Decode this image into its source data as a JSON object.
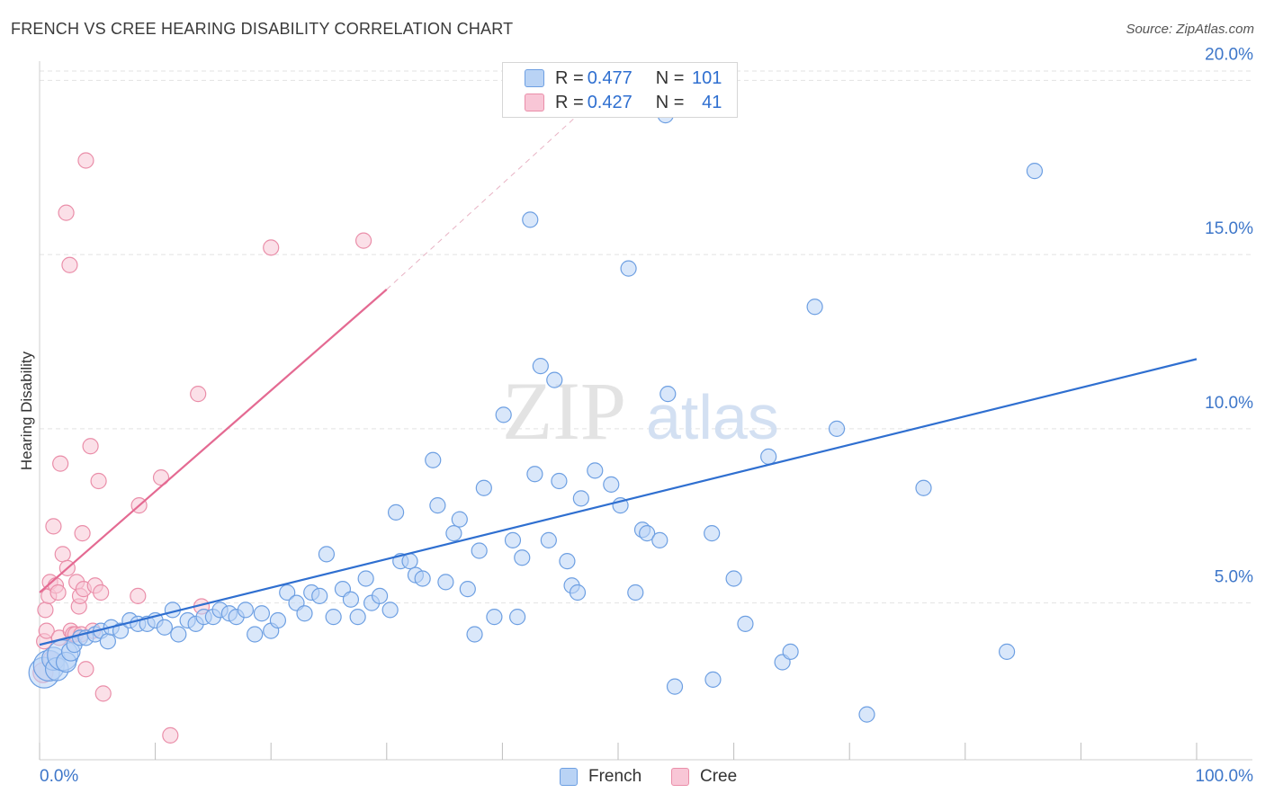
{
  "title": "FRENCH VS CREE HEARING DISABILITY CORRELATION CHART",
  "source": "Source: ZipAtlas.com",
  "legend": {
    "rows": [
      {
        "r_label": "R = ",
        "r_value": "0.477",
        "n_label": "N = ",
        "n_value": "101"
      },
      {
        "r_label": "R = ",
        "r_value": "0.427",
        "n_label": "N = ",
        "n_value": "41"
      }
    ],
    "bottom": [
      "French",
      "Cree"
    ]
  },
  "colors": {
    "french_fill": "#b9d3f5",
    "french_stroke": "#6d9fe2",
    "french_line": "#2f6fd0",
    "cree_fill": "#f8c6d6",
    "cree_stroke": "#ea8ea9",
    "cree_line": "#e46a92",
    "tick_label": "#3d76c9",
    "grid": "#e2e2e2"
  },
  "watermark": {
    "zip": "ZIP",
    "atlas": "atlas"
  },
  "chart_data": {
    "type": "scatter",
    "title": "FRENCH VS CREE HEARING DISABILITY CORRELATION CHART",
    "xlabel": "",
    "ylabel": "Hearing Disability",
    "xlim": [
      0,
      100
    ],
    "ylim": [
      0.5,
      20.5
    ],
    "x_tick_labels": [
      "0.0%",
      "100.0%"
    ],
    "y_ticks": [
      5,
      10,
      15,
      20
    ],
    "y_tick_labels": [
      "5.0%",
      "10.0%",
      "15.0%",
      "20.0%"
    ],
    "legend_position": "top-center",
    "series": [
      {
        "name": "French",
        "R": 0.477,
        "N": 101,
        "trendline": {
          "x": [
            0,
            100
          ],
          "y": [
            3.8,
            12.0
          ]
        },
        "points": [
          [
            0.4,
            3.0,
            2.0
          ],
          [
            0.8,
            3.2,
            2.0
          ],
          [
            1.2,
            3.4,
            1.5
          ],
          [
            1.5,
            3.1,
            1.5
          ],
          [
            2.0,
            3.5,
            2.0
          ],
          [
            2.3,
            3.3,
            1.3
          ],
          [
            2.7,
            3.6,
            1.2
          ],
          [
            3.0,
            3.8,
            1.0
          ],
          [
            3.5,
            4.0,
            1.0
          ],
          [
            4.0,
            4.0,
            1.0
          ],
          [
            4.8,
            4.1,
            1.0
          ],
          [
            5.3,
            4.2,
            1.0
          ],
          [
            5.9,
            3.9,
            1.0
          ],
          [
            6.2,
            4.3,
            1.0
          ],
          [
            7.0,
            4.2,
            1.0
          ],
          [
            7.8,
            4.5,
            1.0
          ],
          [
            8.5,
            4.4,
            1.0
          ],
          [
            9.3,
            4.4,
            1.0
          ],
          [
            10.0,
            4.5,
            1.0
          ],
          [
            10.8,
            4.3,
            1.0
          ],
          [
            11.5,
            4.8,
            1.0
          ],
          [
            12.0,
            4.1,
            1.0
          ],
          [
            12.8,
            4.5,
            1.0
          ],
          [
            13.5,
            4.4,
            1.0
          ],
          [
            14.2,
            4.6,
            1.0
          ],
          [
            15.0,
            4.6,
            1.0
          ],
          [
            15.6,
            4.8,
            1.0
          ],
          [
            16.4,
            4.7,
            1.0
          ],
          [
            17.0,
            4.6,
            1.0
          ],
          [
            17.8,
            4.8,
            1.0
          ],
          [
            18.6,
            4.1,
            1.0
          ],
          [
            19.2,
            4.7,
            1.0
          ],
          [
            20.0,
            4.2,
            1.0
          ],
          [
            20.6,
            4.5,
            1.0
          ],
          [
            21.4,
            5.3,
            1.0
          ],
          [
            22.2,
            5.0,
            1.0
          ],
          [
            22.9,
            4.7,
            1.0
          ],
          [
            23.5,
            5.3,
            1.0
          ],
          [
            24.2,
            5.2,
            1.0
          ],
          [
            24.8,
            6.4,
            1.0
          ],
          [
            25.4,
            4.6,
            1.0
          ],
          [
            26.2,
            5.4,
            1.0
          ],
          [
            26.9,
            5.1,
            1.0
          ],
          [
            27.5,
            4.6,
            1.0
          ],
          [
            28.2,
            5.7,
            1.0
          ],
          [
            28.7,
            5.0,
            1.0
          ],
          [
            29.4,
            5.2,
            1.0
          ],
          [
            30.3,
            4.8,
            1.0
          ],
          [
            30.8,
            7.6,
            1.0
          ],
          [
            31.2,
            6.2,
            1.0
          ],
          [
            32.0,
            6.2,
            1.0
          ],
          [
            32.5,
            5.8,
            1.0
          ],
          [
            33.1,
            5.7,
            1.0
          ],
          [
            34.0,
            9.1,
            1.0
          ],
          [
            34.4,
            7.8,
            1.0
          ],
          [
            35.1,
            5.6,
            1.0
          ],
          [
            35.8,
            7.0,
            1.0
          ],
          [
            36.3,
            7.4,
            1.0
          ],
          [
            37.0,
            5.4,
            1.0
          ],
          [
            37.6,
            4.1,
            1.0
          ],
          [
            38.0,
            6.5,
            1.0
          ],
          [
            38.4,
            8.3,
            1.0
          ],
          [
            39.3,
            4.6,
            1.0
          ],
          [
            40.1,
            10.4,
            1.0
          ],
          [
            40.9,
            6.8,
            1.0
          ],
          [
            41.3,
            4.6,
            1.0
          ],
          [
            41.7,
            6.3,
            1.0
          ],
          [
            42.4,
            16.0,
            1.0
          ],
          [
            42.8,
            8.7,
            1.0
          ],
          [
            43.3,
            11.8,
            1.0
          ],
          [
            44.0,
            6.8,
            1.0
          ],
          [
            44.5,
            11.4,
            1.0
          ],
          [
            44.9,
            8.5,
            1.0
          ],
          [
            45.6,
            6.2,
            1.0
          ],
          [
            46.0,
            5.5,
            1.0
          ],
          [
            46.5,
            5.3,
            1.0
          ],
          [
            46.8,
            8.0,
            1.0
          ],
          [
            48.0,
            8.8,
            1.0
          ],
          [
            49.4,
            8.4,
            1.0
          ],
          [
            50.2,
            7.8,
            1.0
          ],
          [
            50.9,
            14.6,
            1.0
          ],
          [
            51.5,
            5.3,
            1.0
          ],
          [
            52.1,
            7.1,
            1.0
          ],
          [
            52.5,
            7.0,
            1.0
          ],
          [
            53.6,
            6.8,
            1.0
          ],
          [
            54.3,
            11.0,
            1.0
          ],
          [
            54.1,
            19.0,
            1.0
          ],
          [
            54.9,
            2.6,
            1.0
          ],
          [
            58.1,
            7.0,
            1.0
          ],
          [
            58.2,
            2.8,
            1.0
          ],
          [
            60.0,
            5.7,
            1.0
          ],
          [
            61.0,
            4.4,
            1.0
          ],
          [
            63.0,
            9.2,
            1.0
          ],
          [
            64.2,
            3.3,
            1.0
          ],
          [
            64.9,
            3.6,
            1.0
          ],
          [
            67.0,
            13.5,
            1.0
          ],
          [
            68.9,
            10.0,
            1.0
          ],
          [
            71.5,
            1.8,
            1.0
          ],
          [
            76.4,
            8.3,
            1.0
          ],
          [
            83.6,
            3.6,
            1.0
          ],
          [
            86.0,
            17.4,
            1.0
          ]
        ]
      },
      {
        "name": "Cree",
        "R": 0.427,
        "N": 41,
        "trendline": {
          "x": [
            0,
            30
          ],
          "y": [
            5.3,
            14.0
          ]
        },
        "trendline_extension": {
          "x": [
            30,
            46.5
          ],
          "y": [
            14.0,
            19.0
          ]
        },
        "points": [
          [
            0.3,
            3.0,
            1.3
          ],
          [
            0.4,
            3.9,
            1.0
          ],
          [
            0.5,
            4.8,
            1.0
          ],
          [
            0.6,
            4.2,
            1.0
          ],
          [
            0.8,
            5.2,
            1.0
          ],
          [
            0.9,
            5.6,
            1.0
          ],
          [
            1.0,
            3.4,
            1.0
          ],
          [
            1.2,
            7.2,
            1.0
          ],
          [
            1.4,
            5.5,
            1.0
          ],
          [
            1.6,
            5.3,
            1.0
          ],
          [
            1.7,
            4.0,
            1.0
          ],
          [
            1.8,
            9.0,
            1.0
          ],
          [
            2.0,
            6.4,
            1.0
          ],
          [
            2.3,
            16.2,
            1.0
          ],
          [
            2.4,
            6.0,
            1.0
          ],
          [
            2.6,
            14.7,
            1.0
          ],
          [
            2.7,
            4.2,
            1.0
          ],
          [
            2.9,
            4.1,
            1.0
          ],
          [
            3.1,
            4.1,
            1.0
          ],
          [
            3.2,
            5.6,
            1.0
          ],
          [
            3.4,
            4.9,
            1.0
          ],
          [
            3.5,
            5.2,
            1.0
          ],
          [
            3.6,
            4.1,
            1.0
          ],
          [
            3.7,
            7.0,
            1.0
          ],
          [
            3.8,
            5.4,
            1.0
          ],
          [
            4.0,
            3.1,
            1.0
          ],
          [
            4.0,
            17.7,
            1.0
          ],
          [
            4.4,
            9.5,
            1.0
          ],
          [
            4.6,
            4.2,
            1.0
          ],
          [
            4.8,
            5.5,
            1.0
          ],
          [
            5.1,
            8.5,
            1.0
          ],
          [
            5.3,
            5.3,
            1.0
          ],
          [
            5.5,
            2.4,
            1.0
          ],
          [
            8.5,
            5.2,
            1.0
          ],
          [
            8.6,
            7.8,
            1.0
          ],
          [
            10.5,
            8.6,
            1.0
          ],
          [
            11.3,
            1.2,
            1.0
          ],
          [
            13.7,
            11.0,
            1.0
          ],
          [
            14.0,
            4.9,
            1.0
          ],
          [
            20.0,
            15.2,
            1.0
          ],
          [
            28.0,
            15.4,
            1.0
          ]
        ]
      }
    ]
  }
}
